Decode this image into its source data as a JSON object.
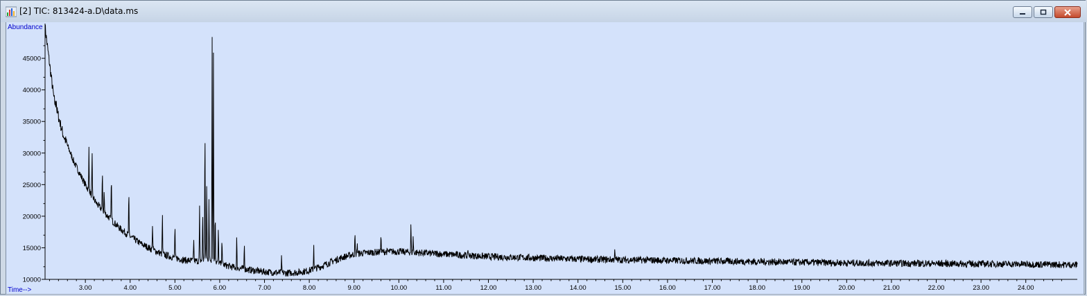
{
  "window": {
    "title": "[2] TIC: 813424-a.D\\data.ms",
    "icon": "chromatogram-app-icon",
    "buttons": [
      "minimize-icon",
      "restore-icon",
      "close-icon"
    ]
  },
  "chart_data": {
    "type": "line",
    "ylabel": "Abundance",
    "xlabel": "Time-->",
    "x_ticks": [
      "3.00",
      "4.00",
      "5.00",
      "6.00",
      "7.00",
      "8.00",
      "9.00",
      "10.00",
      "11.00",
      "12.00",
      "13.00",
      "14.00",
      "15.00",
      "16.00",
      "17.00",
      "18.00",
      "19.00",
      "20.00",
      "21.00",
      "22.00",
      "23.00",
      "24.00"
    ],
    "y_ticks": [
      "10000",
      "15000",
      "20000",
      "25000",
      "30000",
      "35000",
      "40000",
      "45000"
    ],
    "xlim": [
      2.1,
      25.15
    ],
    "ylim": [
      10000,
      50500
    ],
    "grid": false,
    "line_color": "#000000",
    "background_color": "#d4e2fb",
    "label_color": "#0000cc",
    "series": [
      {
        "baseline": [
          [
            2.1,
            50000
          ],
          [
            2.15,
            47000
          ],
          [
            2.3,
            38500
          ],
          [
            2.5,
            33000
          ],
          [
            2.75,
            28500
          ],
          [
            3.0,
            25000
          ],
          [
            3.25,
            22000
          ],
          [
            3.5,
            20000
          ],
          [
            3.75,
            18200
          ],
          [
            4.0,
            16800
          ],
          [
            4.25,
            15600
          ],
          [
            4.5,
            14700
          ],
          [
            4.75,
            13900
          ],
          [
            5.0,
            13400
          ],
          [
            5.25,
            13000
          ],
          [
            5.5,
            12900
          ],
          [
            5.75,
            13200
          ],
          [
            6.0,
            12500
          ],
          [
            6.25,
            12000
          ],
          [
            6.5,
            11700
          ],
          [
            6.75,
            11400
          ],
          [
            7.0,
            11200
          ],
          [
            7.25,
            11100
          ],
          [
            7.5,
            11000
          ],
          [
            7.75,
            11100
          ],
          [
            8.0,
            11400
          ],
          [
            8.25,
            12000
          ],
          [
            8.5,
            12800
          ],
          [
            8.75,
            13500
          ],
          [
            9.0,
            14000
          ],
          [
            9.25,
            14200
          ],
          [
            9.5,
            14300
          ],
          [
            9.75,
            14400
          ],
          [
            10.0,
            14400
          ],
          [
            10.5,
            14200
          ],
          [
            11.0,
            14000
          ],
          [
            11.5,
            13800
          ],
          [
            12.0,
            13600
          ],
          [
            13.0,
            13400
          ],
          [
            14.0,
            13200
          ],
          [
            15.0,
            13100
          ],
          [
            16.0,
            13000
          ],
          [
            17.0,
            12900
          ],
          [
            18.0,
            12800
          ],
          [
            19.0,
            12700
          ],
          [
            20.0,
            12600
          ],
          [
            21.0,
            12550
          ],
          [
            22.0,
            12500
          ],
          [
            23.0,
            12450
          ],
          [
            24.0,
            12400
          ],
          [
            25.15,
            12300
          ]
        ],
        "noise": 550,
        "peaks": [
          [
            2.35,
            38800
          ],
          [
            3.08,
            31000
          ],
          [
            3.15,
            29800
          ],
          [
            3.38,
            27000
          ],
          [
            3.42,
            24000
          ],
          [
            3.58,
            26500
          ],
          [
            3.97,
            23500
          ],
          [
            4.5,
            19000
          ],
          [
            4.72,
            20300
          ],
          [
            5.0,
            18200
          ],
          [
            5.42,
            16500
          ],
          [
            5.55,
            21300
          ],
          [
            5.62,
            20800
          ],
          [
            5.67,
            34500
          ],
          [
            5.71,
            25000
          ],
          [
            5.76,
            23000
          ],
          [
            5.83,
            49500
          ],
          [
            5.86,
            46000
          ],
          [
            5.9,
            21000
          ],
          [
            5.97,
            17800
          ],
          [
            6.05,
            16800
          ],
          [
            6.38,
            16500
          ],
          [
            6.55,
            16000
          ],
          [
            7.38,
            13300
          ],
          [
            8.1,
            15700
          ],
          [
            9.02,
            17000
          ],
          [
            9.07,
            16000
          ],
          [
            9.6,
            17300
          ],
          [
            10.27,
            18600
          ],
          [
            10.32,
            16800
          ],
          [
            11.55,
            14500
          ],
          [
            14.82,
            14800
          ]
        ]
      }
    ]
  }
}
